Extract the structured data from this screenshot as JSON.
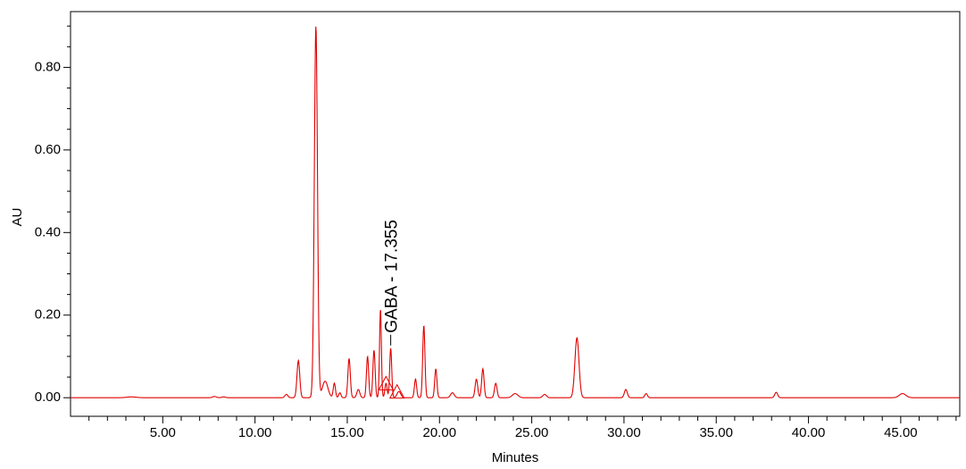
{
  "chart_data": {
    "type": "line",
    "title": "",
    "xlabel": "Minutes",
    "ylabel": "AU",
    "xlim": [
      0,
      48.2
    ],
    "ylim": [
      -0.045,
      0.935
    ],
    "x_ticks": [
      5,
      10,
      15,
      20,
      25,
      30,
      35,
      40,
      45
    ],
    "x_tick_labels": [
      "5.00",
      "10.00",
      "15.00",
      "20.00",
      "25.00",
      "30.00",
      "35.00",
      "40.00",
      "45.00"
    ],
    "x_minor_step": 1,
    "y_ticks": [
      0,
      0.2,
      0.4,
      0.6,
      0.8
    ],
    "y_tick_labels": [
      "0.00",
      "0.20",
      "0.40",
      "0.60",
      "0.80"
    ],
    "y_minor_step": 0.05,
    "grid": false,
    "line_color": "#e00000",
    "baseline": 0.0,
    "series": [
      {
        "name": "",
        "peaks": [
          {
            "rt": 3.3,
            "height": 0.002,
            "width": 0.25
          },
          {
            "rt": 7.8,
            "height": 0.003,
            "width": 0.1
          },
          {
            "rt": 8.3,
            "height": 0.002,
            "width": 0.1
          },
          {
            "rt": 11.7,
            "height": 0.008,
            "width": 0.08
          },
          {
            "rt": 12.35,
            "height": 0.09,
            "width": 0.075
          },
          {
            "rt": 13.3,
            "height": 0.9,
            "width": 0.085
          },
          {
            "rt": 13.8,
            "height": 0.04,
            "width": 0.15
          },
          {
            "rt": 14.3,
            "height": 0.035,
            "width": 0.06
          },
          {
            "rt": 14.6,
            "height": 0.012,
            "width": 0.06
          },
          {
            "rt": 15.1,
            "height": 0.095,
            "width": 0.065
          },
          {
            "rt": 15.6,
            "height": 0.02,
            "width": 0.08
          },
          {
            "rt": 16.1,
            "height": 0.1,
            "width": 0.06
          },
          {
            "rt": 16.45,
            "height": 0.115,
            "width": 0.06
          },
          {
            "rt": 16.8,
            "height": 0.215,
            "width": 0.05
          },
          {
            "rt": 17.1,
            "height": 0.035,
            "width": 0.06
          },
          {
            "rt": 17.355,
            "height": 0.12,
            "width": 0.055
          },
          {
            "rt": 17.8,
            "height": 0.015,
            "width": 0.1
          },
          {
            "rt": 18.7,
            "height": 0.045,
            "width": 0.06
          },
          {
            "rt": 19.15,
            "height": 0.175,
            "width": 0.06
          },
          {
            "rt": 19.8,
            "height": 0.07,
            "width": 0.06
          },
          {
            "rt": 20.7,
            "height": 0.012,
            "width": 0.1
          },
          {
            "rt": 22.0,
            "height": 0.045,
            "width": 0.07
          },
          {
            "rt": 22.35,
            "height": 0.07,
            "width": 0.065
          },
          {
            "rt": 23.05,
            "height": 0.035,
            "width": 0.07
          },
          {
            "rt": 24.1,
            "height": 0.01,
            "width": 0.15
          },
          {
            "rt": 25.7,
            "height": 0.008,
            "width": 0.1
          },
          {
            "rt": 27.45,
            "height": 0.145,
            "width": 0.11
          },
          {
            "rt": 30.1,
            "height": 0.02,
            "width": 0.08
          },
          {
            "rt": 31.2,
            "height": 0.01,
            "width": 0.07
          },
          {
            "rt": 38.25,
            "height": 0.013,
            "width": 0.08
          },
          {
            "rt": 45.1,
            "height": 0.01,
            "width": 0.18
          }
        ]
      }
    ],
    "annotations": [
      {
        "text": "GABA - 17.355",
        "x": 17.355,
        "y": 0.12
      }
    ],
    "integration_markers": [
      {
        "x": 17.1,
        "y": 0.032
      },
      {
        "x": 17.7,
        "y": 0.012
      }
    ]
  }
}
